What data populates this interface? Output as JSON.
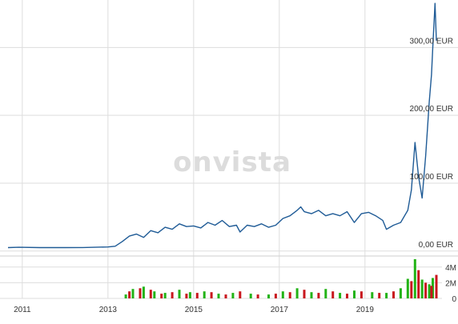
{
  "watermark": "onvista",
  "chart_data": [
    {
      "type": "line",
      "title": "",
      "x_labels": [
        "2011",
        "2013",
        "2015",
        "2017",
        "2019"
      ],
      "x_range": [
        "2010-09",
        "2020-09"
      ],
      "y_tick_labels": [
        "0,00 EUR",
        "100,00 EUR",
        "200,00 EUR",
        "300,00 EUR"
      ],
      "y_ticks": [
        0,
        100,
        200,
        300
      ],
      "ylim": [
        -5,
        370
      ],
      "grid": true,
      "series": [
        {
          "color": "#1f5b96",
          "points": [
            [
              "2010-09",
              5
            ],
            [
              "2010-12",
              5.5
            ],
            [
              "2011-06",
              5
            ],
            [
              "2012-01",
              5
            ],
            [
              "2012-06",
              5.2
            ],
            [
              "2013-01",
              6
            ],
            [
              "2013-03",
              7
            ],
            [
              "2013-05",
              14
            ],
            [
              "2013-07",
              22
            ],
            [
              "2013-09",
              25
            ],
            [
              "2013-11",
              20
            ],
            [
              "2014-01",
              30
            ],
            [
              "2014-03",
              27
            ],
            [
              "2014-05",
              35
            ],
            [
              "2014-07",
              32
            ],
            [
              "2014-09",
              40
            ],
            [
              "2014-11",
              36
            ],
            [
              "2015-01",
              37
            ],
            [
              "2015-03",
              34
            ],
            [
              "2015-05",
              42
            ],
            [
              "2015-07",
              38
            ],
            [
              "2015-09",
              45
            ],
            [
              "2015-11",
              36
            ],
            [
              "2016-01",
              38
            ],
            [
              "2016-02",
              28
            ],
            [
              "2016-04",
              38
            ],
            [
              "2016-06",
              36
            ],
            [
              "2016-08",
              40
            ],
            [
              "2016-10",
              35
            ],
            [
              "2016-12",
              38
            ],
            [
              "2017-02",
              48
            ],
            [
              "2017-04",
              52
            ],
            [
              "2017-06",
              60
            ],
            [
              "2017-07",
              65
            ],
            [
              "2017-08",
              58
            ],
            [
              "2017-10",
              55
            ],
            [
              "2017-12",
              60
            ],
            [
              "2018-02",
              52
            ],
            [
              "2018-04",
              55
            ],
            [
              "2018-06",
              52
            ],
            [
              "2018-08",
              58
            ],
            [
              "2018-10",
              42
            ],
            [
              "2018-12",
              55
            ],
            [
              "2019-02",
              57
            ],
            [
              "2019-04",
              52
            ],
            [
              "2019-06",
              45
            ],
            [
              "2019-07",
              32
            ],
            [
              "2019-09",
              38
            ],
            [
              "2019-11",
              42
            ],
            [
              "2020-01",
              60
            ],
            [
              "2020-02",
              90
            ],
            [
              "2020-03",
              160
            ],
            [
              "2020-04",
              110
            ],
            [
              "2020-05",
              78
            ],
            [
              "2020-06",
              140
            ],
            [
              "2020-07",
              220
            ],
            [
              "2020-07-20",
              260
            ],
            [
              "2020-08",
              300
            ],
            [
              "2020-08-20",
              365
            ],
            [
              "2020-09",
              310
            ]
          ]
        }
      ]
    },
    {
      "type": "bar",
      "title": "volume",
      "y_tick_labels": [
        "0",
        "2M",
        "4M"
      ],
      "y_ticks": [
        0,
        2000000,
        4000000
      ],
      "ylim": [
        0,
        5200000
      ],
      "series": [
        {
          "name": "up",
          "color": "#22b316",
          "bars": [
            [
              "2013-06",
              500000
            ],
            [
              "2013-08",
              1200000
            ],
            [
              "2013-11",
              1500000
            ],
            [
              "2014-02",
              900000
            ],
            [
              "2014-05",
              700000
            ],
            [
              "2014-09",
              1100000
            ],
            [
              "2014-12",
              800000
            ],
            [
              "2015-04",
              900000
            ],
            [
              "2015-08",
              600000
            ],
            [
              "2015-12",
              700000
            ],
            [
              "2016-05",
              600000
            ],
            [
              "2016-10",
              500000
            ],
            [
              "2017-02",
              900000
            ],
            [
              "2017-06",
              1300000
            ],
            [
              "2017-10",
              800000
            ],
            [
              "2018-02",
              1200000
            ],
            [
              "2018-06",
              700000
            ],
            [
              "2018-10",
              1000000
            ],
            [
              "2019-03",
              800000
            ],
            [
              "2019-07",
              700000
            ],
            [
              "2019-11",
              1300000
            ],
            [
              "2020-01",
              2500000
            ],
            [
              "2020-03",
              5000000
            ],
            [
              "2020-05",
              2400000
            ],
            [
              "2020-07",
              1800000
            ],
            [
              "2020-08",
              2600000
            ]
          ]
        },
        {
          "name": "down",
          "color": "#c8161d",
          "bars": [
            [
              "2013-07",
              900000
            ],
            [
              "2013-10",
              1300000
            ],
            [
              "2014-01",
              1100000
            ],
            [
              "2014-04",
              600000
            ],
            [
              "2014-07",
              800000
            ],
            [
              "2014-11",
              600000
            ],
            [
              "2015-02",
              700000
            ],
            [
              "2015-06",
              800000
            ],
            [
              "2015-10",
              500000
            ],
            [
              "2016-02",
              900000
            ],
            [
              "2016-07",
              500000
            ],
            [
              "2016-12",
              600000
            ],
            [
              "2017-04",
              800000
            ],
            [
              "2017-08",
              1100000
            ],
            [
              "2017-12",
              700000
            ],
            [
              "2018-04",
              900000
            ],
            [
              "2018-08",
              600000
            ],
            [
              "2018-12",
              900000
            ],
            [
              "2019-05",
              700000
            ],
            [
              "2019-09",
              900000
            ],
            [
              "2020-02",
              2200000
            ],
            [
              "2020-04",
              3600000
            ],
            [
              "2020-06",
              2000000
            ],
            [
              "2020-07-20",
              1600000
            ],
            [
              "2020-09",
              3000000
            ]
          ]
        }
      ]
    }
  ]
}
